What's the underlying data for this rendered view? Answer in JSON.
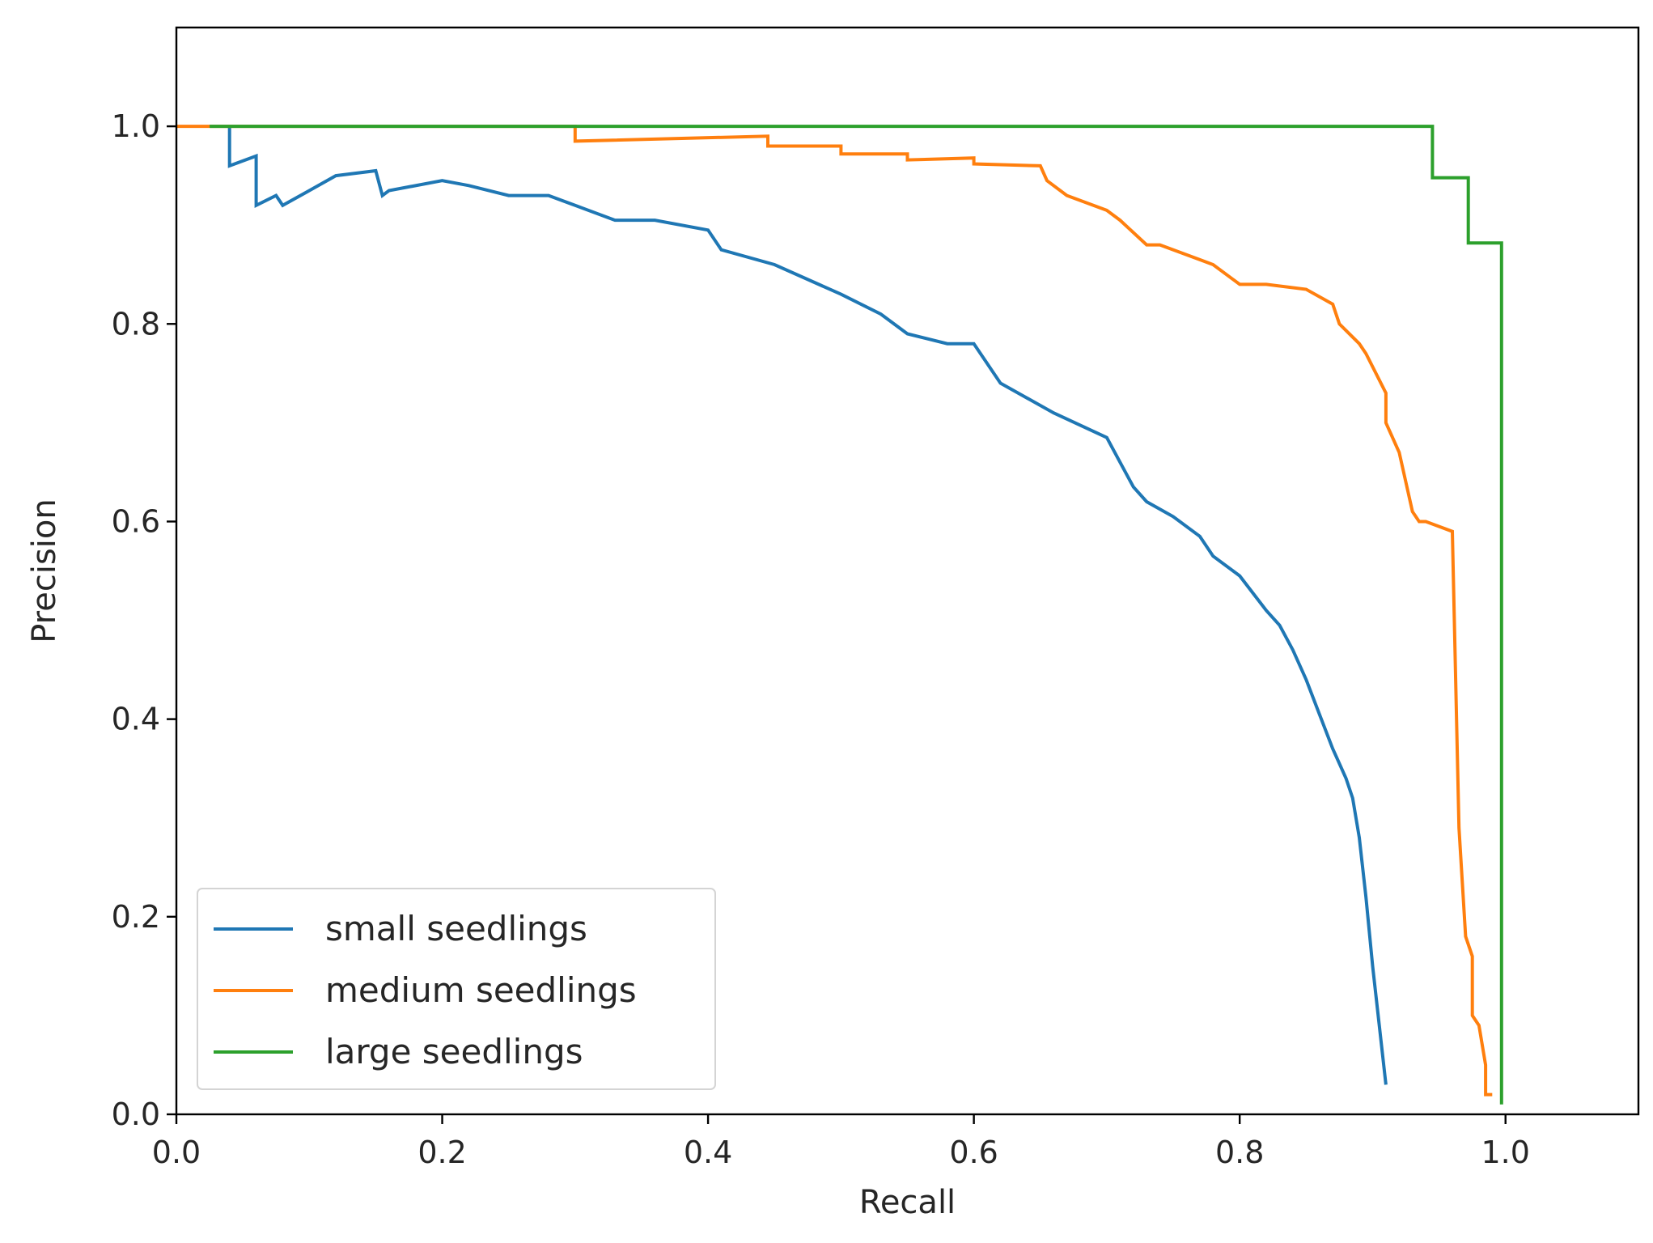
{
  "chart_data": {
    "type": "line",
    "title": "",
    "xlabel": "Recall",
    "ylabel": "Precision",
    "xlim": [
      0.0,
      1.1
    ],
    "ylim": [
      0.0,
      1.1
    ],
    "xticks": [
      0.0,
      0.2,
      0.4,
      0.6,
      0.8,
      1.0
    ],
    "yticks": [
      0.0,
      0.2,
      0.4,
      0.6,
      0.8,
      1.0
    ],
    "xtick_labels": [
      "0.0",
      "0.2",
      "0.4",
      "0.6",
      "0.8",
      "1.0"
    ],
    "ytick_labels": [
      "0.0",
      "0.2",
      "0.4",
      "0.6",
      "0.8",
      "1.0"
    ],
    "grid": false,
    "legend_position": "lower-left",
    "series": [
      {
        "name": "small seedlings",
        "color": "#1f77b4",
        "x": [
          0.04,
          0.04,
          0.06,
          0.06,
          0.075,
          0.08,
          0.1,
          0.12,
          0.15,
          0.155,
          0.16,
          0.2,
          0.22,
          0.25,
          0.28,
          0.3,
          0.33,
          0.36,
          0.4,
          0.41,
          0.45,
          0.5,
          0.53,
          0.55,
          0.58,
          0.6,
          0.62,
          0.66,
          0.7,
          0.71,
          0.72,
          0.73,
          0.75,
          0.77,
          0.78,
          0.8,
          0.82,
          0.83,
          0.84,
          0.85,
          0.86,
          0.87,
          0.88,
          0.885,
          0.89,
          0.895,
          0.9,
          0.905,
          0.91
        ],
        "y": [
          1.0,
          0.96,
          0.97,
          0.92,
          0.93,
          0.92,
          0.935,
          0.95,
          0.955,
          0.93,
          0.935,
          0.945,
          0.94,
          0.93,
          0.93,
          0.92,
          0.905,
          0.905,
          0.895,
          0.875,
          0.86,
          0.83,
          0.81,
          0.79,
          0.78,
          0.78,
          0.74,
          0.71,
          0.685,
          0.66,
          0.635,
          0.62,
          0.605,
          0.585,
          0.565,
          0.545,
          0.51,
          0.495,
          0.47,
          0.44,
          0.405,
          0.37,
          0.34,
          0.32,
          0.28,
          0.22,
          0.15,
          0.09,
          0.03
        ]
      },
      {
        "name": "medium seedlings",
        "color": "#ff7f0e",
        "x": [
          0.0,
          0.3,
          0.3,
          0.445,
          0.445,
          0.5,
          0.5,
          0.55,
          0.55,
          0.6,
          0.6,
          0.65,
          0.655,
          0.67,
          0.7,
          0.71,
          0.73,
          0.74,
          0.77,
          0.78,
          0.8,
          0.82,
          0.85,
          0.87,
          0.875,
          0.89,
          0.895,
          0.91,
          0.91,
          0.92,
          0.93,
          0.935,
          0.94,
          0.96,
          0.965,
          0.97,
          0.975,
          0.975,
          0.98,
          0.985,
          0.985,
          0.99
        ],
        "y": [
          1.0,
          1.0,
          0.985,
          0.99,
          0.98,
          0.98,
          0.972,
          0.972,
          0.966,
          0.968,
          0.962,
          0.96,
          0.945,
          0.93,
          0.915,
          0.905,
          0.88,
          0.88,
          0.865,
          0.86,
          0.84,
          0.84,
          0.835,
          0.82,
          0.8,
          0.78,
          0.77,
          0.73,
          0.7,
          0.67,
          0.61,
          0.6,
          0.6,
          0.59,
          0.29,
          0.18,
          0.16,
          0.1,
          0.09,
          0.05,
          0.02,
          0.02
        ]
      },
      {
        "name": "large seedlings",
        "color": "#2ca02c",
        "x": [
          0.025,
          0.945,
          0.945,
          0.972,
          0.972,
          0.997,
          0.997,
          0.997
        ],
        "y": [
          1.0,
          1.0,
          0.948,
          0.948,
          0.882,
          0.882,
          0.882,
          0.01
        ]
      }
    ]
  }
}
